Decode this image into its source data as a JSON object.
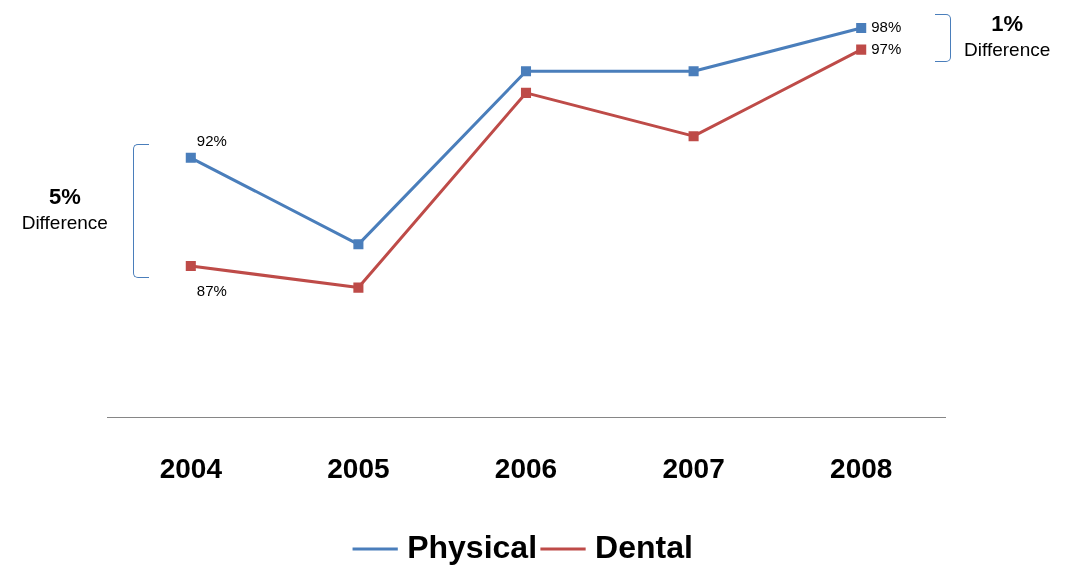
{
  "chart_data": {
    "type": "line",
    "categories": [
      "2004",
      "2005",
      "2006",
      "2007",
      "2008"
    ],
    "series": [
      {
        "name": "Physical",
        "color": "#4a7ebb",
        "values": [
          92,
          88,
          96,
          96,
          98
        ],
        "value_labels": [
          "92%",
          null,
          null,
          null,
          "98%"
        ]
      },
      {
        "name": "Dental",
        "color": "#be4b48",
        "values": [
          87,
          86,
          95,
          93,
          97
        ],
        "value_labels": [
          "87%",
          null,
          null,
          null,
          "97%"
        ]
      }
    ],
    "tick_labels": "x",
    "grid": false,
    "legend": "bottom",
    "marker": "square",
    "line_style": "solid",
    "annotations": [
      "5% Difference",
      "1% Difference"
    ]
  }
}
